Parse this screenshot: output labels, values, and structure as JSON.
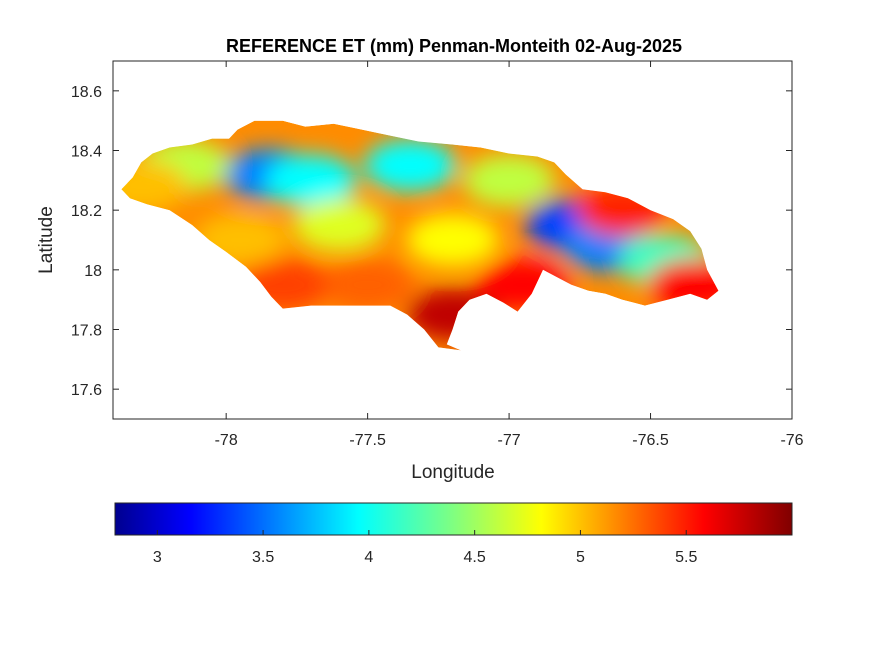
{
  "figure": {
    "title": "REFERENCE ET (mm) Penman-Monteith 02-Aug-2025",
    "xlabel": "Longitude",
    "ylabel": "Latitude"
  },
  "chart_data": {
    "type": "heatmap",
    "title": "REFERENCE ET (mm) Penman-Monteith 02-Aug-2025",
    "xlabel": "Longitude",
    "ylabel": "Latitude",
    "xlim": [
      -78.4,
      -76
    ],
    "ylim": [
      17.5,
      18.7
    ],
    "x_ticks": [
      -78,
      -77.5,
      -77,
      -76.5,
      -76
    ],
    "x_tick_labels": [
      "-78",
      "-77.5",
      "-77",
      "-76.5",
      "-76"
    ],
    "y_ticks": [
      17.6,
      17.8,
      18,
      18.2,
      18.4,
      18.6
    ],
    "y_tick_labels": [
      "17.6",
      "17.8",
      "18",
      "18.2",
      "18.4",
      "18.6"
    ],
    "colormap": "jet",
    "clim": [
      2.8,
      6.0
    ],
    "colorbar": {
      "location": "bottom",
      "ticks": [
        3,
        3.5,
        4,
        4.5,
        5,
        5.5
      ],
      "tick_labels": [
        "3",
        "3.5",
        "4",
        "4.5",
        "5",
        "5.5"
      ]
    },
    "regions": [
      {
        "lon": -77.85,
        "lat": 18.32,
        "value": 3.6
      },
      {
        "lon": -77.7,
        "lat": 18.3,
        "value": 4.0
      },
      {
        "lon": -78.15,
        "lat": 18.35,
        "value": 4.6
      },
      {
        "lon": -77.35,
        "lat": 18.35,
        "value": 4.0
      },
      {
        "lon": -77.0,
        "lat": 18.3,
        "value": 4.6
      },
      {
        "lon": -76.78,
        "lat": 18.15,
        "value": 3.4
      },
      {
        "lon": -76.65,
        "lat": 18.08,
        "value": 3.6
      },
      {
        "lon": -76.45,
        "lat": 18.03,
        "value": 4.2
      },
      {
        "lon": -77.6,
        "lat": 18.15,
        "value": 4.7
      },
      {
        "lon": -77.2,
        "lat": 18.1,
        "value": 4.8
      },
      {
        "lon": -77.5,
        "lat": 17.95,
        "value": 5.3
      },
      {
        "lon": -77.2,
        "lat": 17.85,
        "value": 5.8
      },
      {
        "lon": -76.95,
        "lat": 17.95,
        "value": 5.6
      },
      {
        "lon": -77.8,
        "lat": 17.95,
        "value": 5.4
      },
      {
        "lon": -76.6,
        "lat": 18.2,
        "value": 5.5
      },
      {
        "lon": -76.35,
        "lat": 17.95,
        "value": 5.6
      },
      {
        "lon": -77.95,
        "lat": 18.1,
        "value": 5.0
      },
      {
        "lon": -78.3,
        "lat": 18.28,
        "value": 5.0
      }
    ]
  }
}
